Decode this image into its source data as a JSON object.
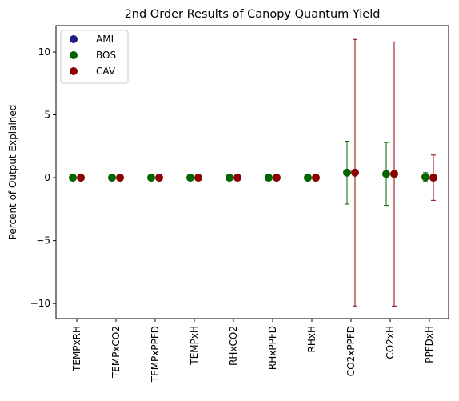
{
  "chart_data": {
    "type": "scatter",
    "title": "2nd Order Results of Canopy Quantum Yield",
    "xlabel": "",
    "ylabel": "Percent of Output Explained",
    "categories": [
      "TEMPxRH",
      "TEMPxCO2",
      "TEMPxPPFD",
      "TEMPxH",
      "RHxCO2",
      "RHxPPFD",
      "RHxH",
      "CO2xPPFD",
      "CO2xH",
      "PPFDxH"
    ],
    "ylim": [
      -11.2,
      12.1
    ],
    "yticks": [
      -10,
      -5,
      0,
      5,
      10
    ],
    "ytick_labels": [
      "−10",
      "−5",
      "0",
      "5",
      "10"
    ],
    "grid": false,
    "legend_position": "top-left",
    "series": [
      {
        "name": "AMI",
        "color": "#1f1a8a",
        "values": [],
        "errors": []
      },
      {
        "name": "BOS",
        "color": "#006400",
        "values": [
          0,
          0,
          0,
          0,
          0,
          0,
          0,
          0.4,
          0.3,
          0.05
        ],
        "errors": [
          0,
          0,
          0,
          0,
          0,
          0,
          0,
          2.5,
          2.5,
          0.35
        ]
      },
      {
        "name": "CAV",
        "color": "#8b0000",
        "values": [
          0,
          0,
          0,
          0,
          0,
          0,
          0,
          0.4,
          0.3,
          0
        ],
        "errors": [
          0,
          0,
          0,
          0,
          0,
          0,
          0,
          10.6,
          10.5,
          1.8
        ]
      }
    ]
  }
}
